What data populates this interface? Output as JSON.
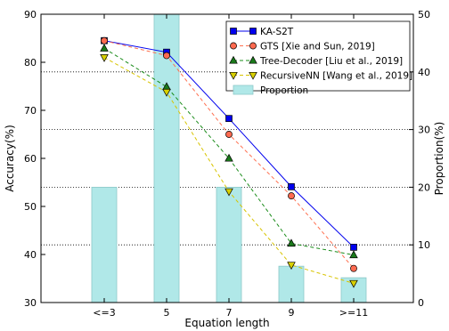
{
  "chart_data": {
    "type": "bar+line",
    "categories": [
      "<=3",
      "5",
      "7",
      "9",
      ">=11"
    ],
    "xlabel": "Equation length",
    "ylabel": "Accuracy(%)",
    "y2label": "Proportion(%)",
    "ylim": [
      30,
      90
    ],
    "y2lim": [
      0,
      50
    ],
    "yticks": [
      30,
      40,
      50,
      60,
      70,
      80,
      90
    ],
    "y2ticks": [
      0,
      10,
      20,
      30,
      40,
      50
    ],
    "y2_grid_lines": [
      10,
      20,
      30,
      40
    ],
    "bars": {
      "name": "Proportion",
      "axis": "right",
      "values": [
        20,
        50,
        20,
        6.3,
        4.3
      ],
      "color": "#b0e8e8"
    },
    "series": [
      {
        "name": "KA-S2T",
        "values": [
          84.5,
          82.1,
          68.3,
          54.1,
          41.5
        ],
        "color": "#0000ee",
        "marker": "square",
        "linestyle": "solid"
      },
      {
        "name": "GTS [Xie and Sun, 2019]",
        "values": [
          84.5,
          81.4,
          65.0,
          52.2,
          37.1
        ],
        "color": "#ff7050",
        "marker_fill": "#ff6a50",
        "marker": "circle",
        "linestyle": "dashed"
      },
      {
        "name": "Tree-Decoder [Liu et al., 2019]",
        "values": [
          82.9,
          74.9,
          60.0,
          42.3,
          39.9
        ],
        "color": "#1a8c1a",
        "marker_fill": "#1a7a1a",
        "marker": "triangle-up",
        "linestyle": "dashed"
      },
      {
        "name": "RecursiveNN [Wang et al., 2019]",
        "values": [
          81.0,
          73.8,
          53.1,
          37.8,
          34.0
        ],
        "color": "#d8c400",
        "marker_fill": "#d8d000",
        "marker": "triangle-down",
        "linestyle": "dashed"
      }
    ],
    "legend_position": "top-right",
    "grid": "dotted horizontal lines at right-axis ticks"
  }
}
